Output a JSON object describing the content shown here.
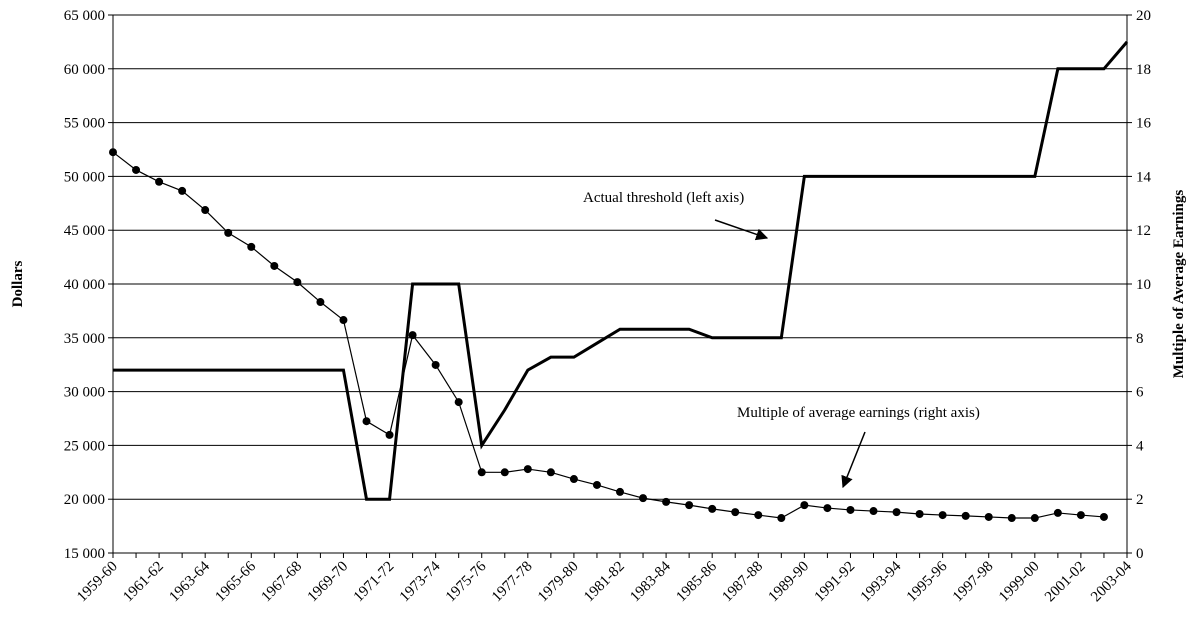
{
  "chart_data": {
    "type": "line",
    "categories": [
      "1959-60",
      null,
      "1961-62",
      null,
      "1963-64",
      null,
      "1965-66",
      null,
      "1967-68",
      null,
      "1969-70",
      null,
      "1971-72",
      null,
      "1973-74",
      null,
      "1975-76",
      null,
      "1977-78",
      null,
      "1979-80",
      null,
      "1981-82",
      null,
      "1983-84",
      null,
      "1985-86",
      null,
      "1987-88",
      null,
      "1989-90",
      null,
      "1991-92",
      null,
      "1993-94",
      null,
      "1995-96",
      null,
      "1997-98",
      null,
      "1999-00",
      null,
      "2001-02",
      null,
      "2003-04"
    ],
    "series": [
      {
        "name": "Actual threshold (left axis)",
        "color": "#000000",
        "axis": "y",
        "values": [
          32000,
          32000,
          32000,
          32000,
          32000,
          32000,
          32000,
          32000,
          32000,
          32000,
          32000,
          20000,
          20000,
          40000,
          40000,
          40000,
          25000,
          28300,
          32000,
          33200,
          33200,
          34500,
          35800,
          35800,
          35800,
          35800,
          35000,
          35000,
          35000,
          35000,
          50000,
          50000,
          50000,
          50000,
          50000,
          50000,
          50000,
          50000,
          50000,
          50000,
          50000,
          60000,
          60000,
          60000,
          62500
        ]
      },
      {
        "name": "Multiple of average earnings (right axis)",
        "color": "#000000",
        "axis": "y2",
        "values": [
          14.9,
          14.24,
          13.8,
          13.46,
          12.75,
          11.9,
          11.38,
          10.67,
          10.07,
          9.33,
          8.66,
          4.9,
          4.39,
          8.1,
          6.99,
          5.61,
          3.0,
          3.0,
          3.12,
          3.0,
          2.75,
          2.53,
          2.27,
          2.04,
          1.9,
          1.78,
          1.64,
          1.52,
          1.41,
          1.3,
          1.78,
          1.67,
          1.6,
          1.56,
          1.52,
          1.45,
          1.41,
          1.38,
          1.34,
          1.3,
          1.3,
          1.49,
          1.41,
          1.34,
          null
        ]
      }
    ],
    "ylabel": "Dollars",
    "y2label": "Multiple of Average Earnings",
    "ylim": [
      15000,
      65000
    ],
    "yticks": [
      {
        "value": 15000,
        "label": "15 000"
      },
      {
        "value": 20000,
        "label": "20 000"
      },
      {
        "value": 25000,
        "label": "25 000"
      },
      {
        "value": 30000,
        "label": "30 000"
      },
      {
        "value": 35000,
        "label": "35 000"
      },
      {
        "value": 40000,
        "label": "40 000"
      },
      {
        "value": 45000,
        "label": "45 000"
      },
      {
        "value": 50000,
        "label": "50 000"
      },
      {
        "value": 55000,
        "label": "55 000"
      },
      {
        "value": 60000,
        "label": "60 000"
      },
      {
        "value": 65000,
        "label": "65 000"
      }
    ],
    "y2lim": [
      0,
      20
    ],
    "y2ticks": [
      0,
      2,
      4,
      6,
      8,
      10,
      12,
      14,
      16,
      18,
      20
    ],
    "grid": true,
    "annotations": [
      "Actual threshold (left axis)",
      "Multiple of average earnings (right axis)"
    ]
  }
}
